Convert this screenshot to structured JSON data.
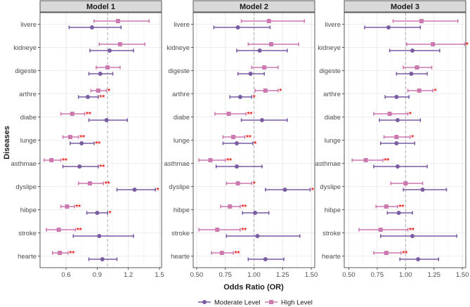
{
  "chart_data": {
    "type": "forest",
    "xlabel": "Odds Ratio (OR)",
    "ylabel": "Diseases",
    "reference_line": 1.0,
    "legend": {
      "placement": "bottom",
      "entries": [
        {
          "name": "Moderate Level",
          "color": "#7a5ca3"
        },
        {
          "name": "High Level",
          "color": "#cc79b0"
        }
      ]
    },
    "categories": [
      "livere",
      "kidneye",
      "digeste",
      "arthre",
      "diabe",
      "lunge",
      "asthmae",
      "dyslipe",
      "hibpe",
      "stroke",
      "hearte"
    ],
    "panels": [
      {
        "title": "Model 1",
        "xlim": [
          0.35,
          1.52
        ],
        "xticks": [
          0.6,
          0.9,
          1.2,
          1.5
        ],
        "xtick_labels": [
          "0.6",
          "0.9",
          "1.2",
          "1.5"
        ],
        "series": [
          {
            "name": "Moderate Level",
            "points": [
              {
                "or": 0.85,
                "lo": 0.63,
                "hi": 1.13,
                "sig": ""
              },
              {
                "or": 1.02,
                "lo": 0.83,
                "hi": 1.25,
                "sig": ""
              },
              {
                "or": 0.93,
                "lo": 0.82,
                "hi": 1.05,
                "sig": ""
              },
              {
                "or": 0.81,
                "lo": 0.72,
                "hi": 0.91,
                "sig": "**"
              },
              {
                "or": 0.99,
                "lo": 0.82,
                "hi": 1.19,
                "sig": ""
              },
              {
                "or": 0.75,
                "lo": 0.64,
                "hi": 0.87,
                "sig": "**"
              },
              {
                "or": 0.73,
                "lo": 0.57,
                "hi": 0.91,
                "sig": "**"
              },
              {
                "or": 1.26,
                "lo": 1.09,
                "hi": 1.46,
                "sig": "*"
              },
              {
                "or": 0.9,
                "lo": 0.8,
                "hi": 1.0,
                "sig": "*"
              },
              {
                "or": 0.92,
                "lo": 0.67,
                "hi": 1.25,
                "sig": ""
              },
              {
                "or": 0.95,
                "lo": 0.82,
                "hi": 1.09,
                "sig": ""
              }
            ]
          },
          {
            "name": "High Level",
            "points": [
              {
                "or": 1.1,
                "lo": 0.87,
                "hi": 1.4,
                "sig": ""
              },
              {
                "or": 1.12,
                "lo": 0.92,
                "hi": 1.36,
                "sig": ""
              },
              {
                "or": 1.0,
                "lo": 0.89,
                "hi": 1.12,
                "sig": ""
              },
              {
                "or": 0.91,
                "lo": 0.84,
                "hi": 0.99,
                "sig": "*"
              },
              {
                "or": 0.66,
                "lo": 0.55,
                "hi": 0.78,
                "sig": "**"
              },
              {
                "or": 0.64,
                "lo": 0.57,
                "hi": 0.72,
                "sig": "**"
              },
              {
                "or": 0.46,
                "lo": 0.39,
                "hi": 0.55,
                "sig": "**"
              },
              {
                "or": 0.83,
                "lo": 0.72,
                "hi": 0.96,
                "sig": "**"
              },
              {
                "or": 0.61,
                "lo": 0.55,
                "hi": 0.68,
                "sig": "**"
              },
              {
                "or": 0.53,
                "lo": 0.41,
                "hi": 0.69,
                "sig": "**"
              },
              {
                "or": 0.54,
                "lo": 0.47,
                "hi": 0.62,
                "sig": "**"
              }
            ]
          }
        ]
      },
      {
        "title": "Model 2",
        "xlim": [
          0.47,
          1.53
        ],
        "xticks": [
          0.5,
          0.75,
          1.0,
          1.25,
          1.5
        ],
        "xtick_labels": [
          "0.50",
          "0.75",
          "1.00",
          "1.25",
          "1.50"
        ],
        "series": [
          {
            "name": "Moderate Level",
            "points": [
              {
                "or": 0.86,
                "lo": 0.65,
                "hi": 1.14,
                "sig": ""
              },
              {
                "or": 1.05,
                "lo": 0.85,
                "hi": 1.29,
                "sig": ""
              },
              {
                "or": 0.97,
                "lo": 0.86,
                "hi": 1.09,
                "sig": ""
              },
              {
                "or": 0.88,
                "lo": 0.79,
                "hi": 0.98,
                "sig": "*"
              },
              {
                "or": 1.07,
                "lo": 0.89,
                "hi": 1.29,
                "sig": ""
              },
              {
                "or": 0.85,
                "lo": 0.73,
                "hi": 0.99,
                "sig": "*"
              },
              {
                "or": 0.85,
                "lo": 0.67,
                "hi": 1.07,
                "sig": ""
              },
              {
                "or": 1.27,
                "lo": 1.1,
                "hi": 1.49,
                "sig": "*"
              },
              {
                "or": 1.01,
                "lo": 0.9,
                "hi": 1.13,
                "sig": ""
              },
              {
                "or": 1.03,
                "lo": 0.76,
                "hi": 1.4,
                "sig": ""
              },
              {
                "or": 1.1,
                "lo": 0.95,
                "hi": 1.26,
                "sig": ""
              }
            ]
          },
          {
            "name": "High Level",
            "points": [
              {
                "or": 1.13,
                "lo": 0.89,
                "hi": 1.44,
                "sig": ""
              },
              {
                "or": 1.15,
                "lo": 0.95,
                "hi": 1.39,
                "sig": ""
              },
              {
                "or": 1.09,
                "lo": 0.98,
                "hi": 1.21,
                "sig": ""
              },
              {
                "or": 1.1,
                "lo": 1.01,
                "hi": 1.21,
                "sig": "*"
              },
              {
                "or": 0.78,
                "lo": 0.66,
                "hi": 0.93,
                "sig": "**"
              },
              {
                "or": 0.82,
                "lo": 0.73,
                "hi": 0.92,
                "sig": "**"
              },
              {
                "or": 0.62,
                "lo": 0.52,
                "hi": 0.75,
                "sig": "**"
              },
              {
                "or": 0.86,
                "lo": 0.76,
                "hi": 0.98,
                "sig": "*"
              },
              {
                "or": 0.79,
                "lo": 0.71,
                "hi": 0.88,
                "sig": "**"
              },
              {
                "or": 0.68,
                "lo": 0.52,
                "hi": 0.88,
                "sig": "**"
              },
              {
                "or": 0.72,
                "lo": 0.63,
                "hi": 0.82,
                "sig": "**"
              }
            ]
          }
        ]
      },
      {
        "title": "Model 3",
        "xlim": [
          0.46,
          1.53
        ],
        "xticks": [
          0.5,
          0.75,
          1.0,
          1.25,
          1.5
        ],
        "xtick_labels": [
          "0.50",
          "0.75",
          "1.00",
          "1.25",
          "1.50"
        ],
        "series": [
          {
            "name": "Moderate Level",
            "points": [
              {
                "or": 0.85,
                "lo": 0.64,
                "hi": 1.13,
                "sig": ""
              },
              {
                "or": 1.06,
                "lo": 0.86,
                "hi": 1.3,
                "sig": ""
              },
              {
                "or": 1.05,
                "lo": 0.92,
                "hi": 1.19,
                "sig": ""
              },
              {
                "or": 0.92,
                "lo": 0.82,
                "hi": 1.03,
                "sig": ""
              },
              {
                "or": 0.93,
                "lo": 0.77,
                "hi": 1.13,
                "sig": ""
              },
              {
                "or": 0.92,
                "lo": 0.78,
                "hi": 1.08,
                "sig": ""
              },
              {
                "or": 0.93,
                "lo": 0.72,
                "hi": 1.19,
                "sig": ""
              },
              {
                "or": 1.15,
                "lo": 0.98,
                "hi": 1.36,
                "sig": ""
              },
              {
                "or": 0.94,
                "lo": 0.84,
                "hi": 1.06,
                "sig": ""
              },
              {
                "or": 1.06,
                "lo": 0.78,
                "hi": 1.45,
                "sig": ""
              },
              {
                "or": 1.11,
                "lo": 0.95,
                "hi": 1.29,
                "sig": ""
              }
            ]
          },
          {
            "name": "High Level",
            "points": [
              {
                "or": 1.14,
                "lo": 0.89,
                "hi": 1.46,
                "sig": ""
              },
              {
                "or": 1.24,
                "lo": 1.01,
                "hi": 1.52,
                "sig": "*"
              },
              {
                "or": 1.1,
                "lo": 0.98,
                "hi": 1.23,
                "sig": ""
              },
              {
                "or": 1.12,
                "lo": 1.02,
                "hi": 1.24,
                "sig": "*"
              },
              {
                "or": 0.86,
                "lo": 0.72,
                "hi": 1.02,
                "sig": "*"
              },
              {
                "or": 0.92,
                "lo": 0.81,
                "hi": 1.04,
                "sig": "*"
              },
              {
                "or": 0.65,
                "lo": 0.53,
                "hi": 0.8,
                "sig": "**"
              },
              {
                "or": 1.0,
                "lo": 0.87,
                "hi": 1.15,
                "sig": ""
              },
              {
                "or": 0.83,
                "lo": 0.74,
                "hi": 0.93,
                "sig": "**"
              },
              {
                "or": 0.78,
                "lo": 0.59,
                "hi": 1.02,
                "sig": "**"
              },
              {
                "or": 0.83,
                "lo": 0.72,
                "hi": 0.96,
                "sig": "**"
              }
            ]
          }
        ]
      }
    ]
  }
}
